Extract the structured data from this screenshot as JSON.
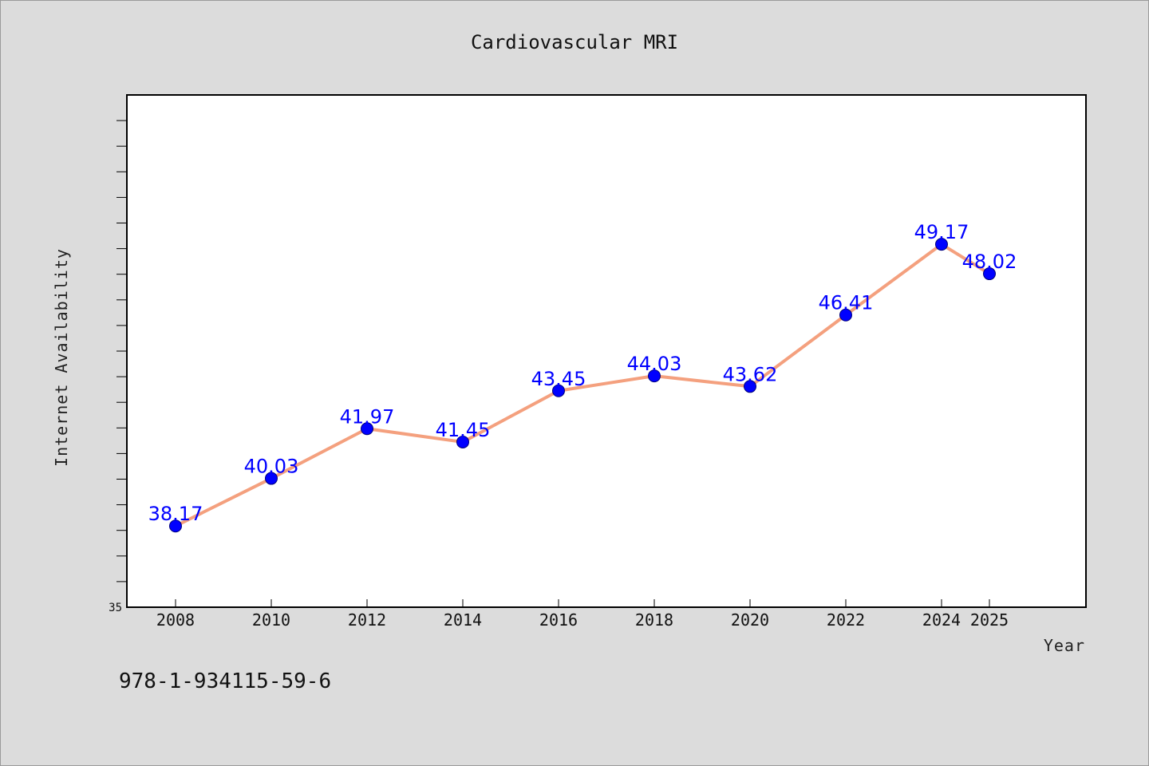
{
  "chart_data": {
    "type": "line",
    "title": "Cardiovascular MRI",
    "xlabel": "Year",
    "ylabel": "Internet Availability",
    "categories": [
      "2008",
      "2010",
      "2012",
      "2014",
      "2016",
      "2018",
      "2020",
      "2022",
      "2024",
      "2025"
    ],
    "series": [
      {
        "values": [
          38.17,
          40.03,
          41.97,
          41.45,
          43.45,
          44.03,
          43.62,
          46.41,
          49.17,
          48.02
        ],
        "data_labels": [
          "38.17",
          "40.03",
          "41.97",
          "41.45",
          "43.45",
          "44.03",
          "43.62",
          "46.41",
          "49.17",
          "48.02"
        ]
      }
    ],
    "ylim": [
      35,
      55
    ],
    "y_tick_labels": [
      "35"
    ],
    "grid": false,
    "line_color": "#f4a07e",
    "marker_color": "#0000ff",
    "label_color": "#0000ff"
  },
  "footer": {
    "isbn": "978-1-934115-59-6"
  }
}
